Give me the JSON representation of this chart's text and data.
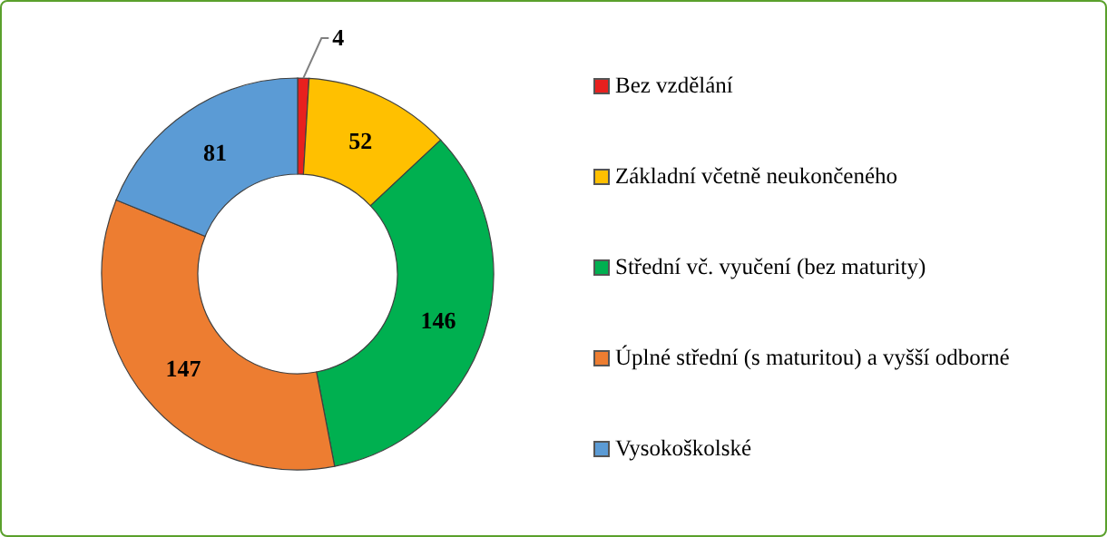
{
  "chart_data": {
    "type": "donut",
    "categories": [
      "Bez vzdělání",
      "Základní včetně neukončeného",
      "Střední vč. vyučení (bez maturity)",
      "Úplné střední (s maturitou) a vyšší odborné",
      "Vysokoškolské"
    ],
    "values": [
      4,
      52,
      146,
      147,
      81
    ],
    "colors": [
      "#e8201e",
      "#ffc000",
      "#00b050",
      "#ed7d31",
      "#5b9bd5"
    ],
    "data_labels": true,
    "legend": "right"
  }
}
